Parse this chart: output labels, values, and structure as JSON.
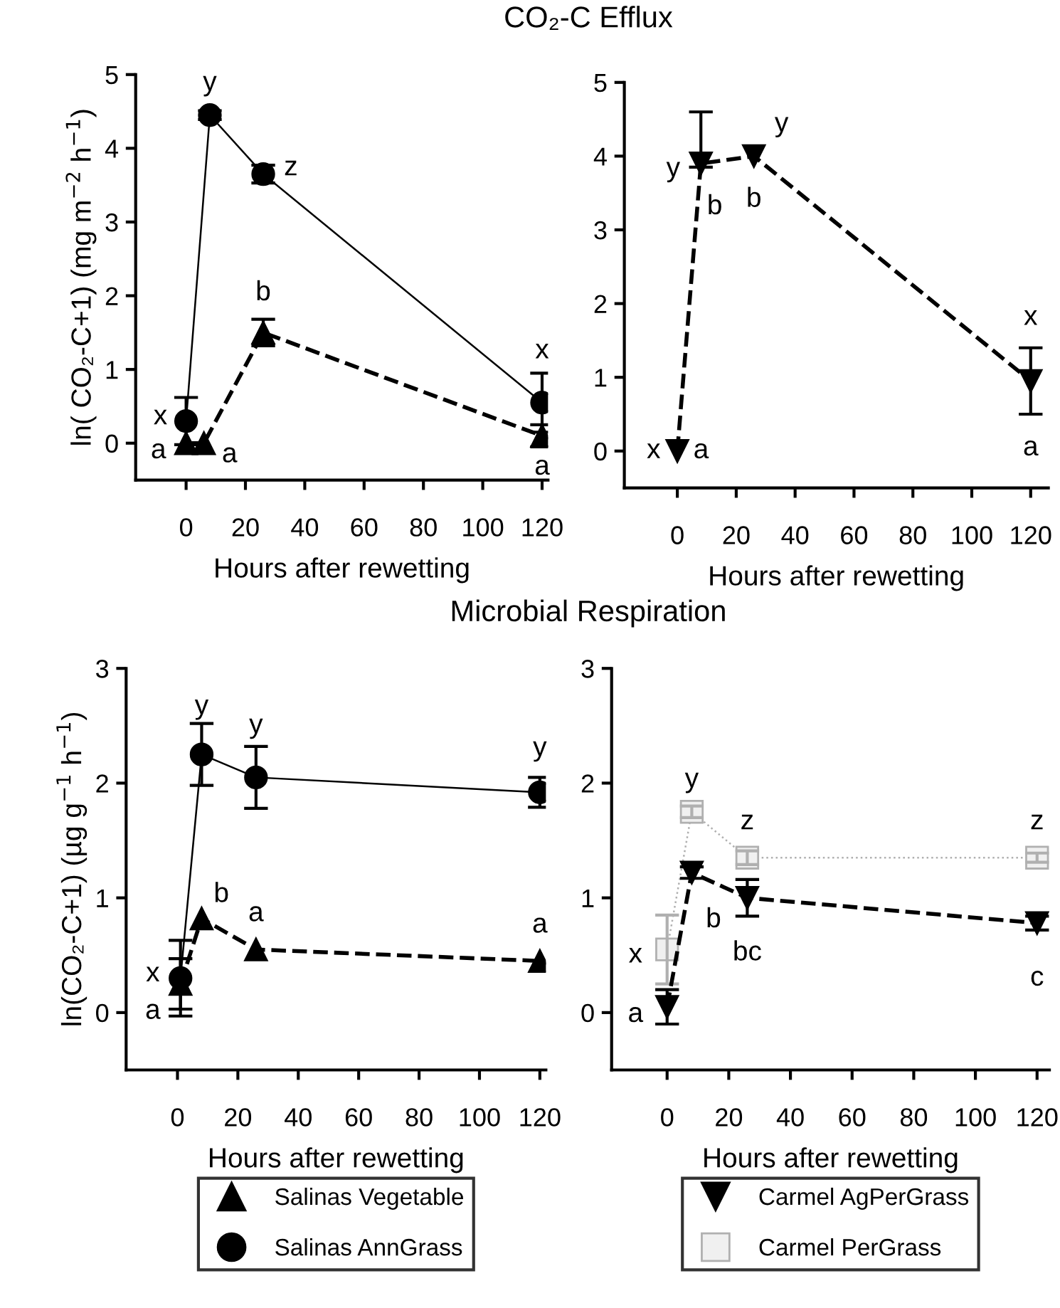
{
  "chart_data": [
    {
      "type": "line",
      "title": "CO₂-C Efflux",
      "xlabel": "Hours after rewetting",
      "ylabel": "ln( CO₂-C+1) (mg m$^{−2}$ h$^{−1}$)",
      "xlim": [
        -17,
        122
      ],
      "xticks": [
        0,
        20,
        40,
        60,
        80,
        100,
        120
      ],
      "ylim": [
        -0.5,
        5
      ],
      "yticks": [
        0,
        1,
        2,
        3,
        4,
        5
      ],
      "grid": false,
      "legend": false,
      "series": [
        {
          "color": "#000000",
          "x": [
            0,
            8,
            26,
            120
          ],
          "values": [
            0.3,
            4.45,
            3.65,
            0.55
          ],
          "errors": [
            0.32,
            0.06,
            0.12,
            0.4
          ],
          "marker": "circle",
          "line_style": "solid"
        },
        {
          "color": "#000000",
          "x": [
            0,
            6,
            26,
            120
          ],
          "values": [
            0,
            0,
            1.5,
            0.1
          ],
          "errors": [
            null,
            null,
            0.18,
            0.15
          ],
          "marker": "triangle",
          "line_style": "dashed"
        }
      ],
      "annotations": [
        {
          "text": "y",
          "x": 8,
          "y": 4.45
        },
        {
          "text": "z",
          "x": 26,
          "y": 3.65
        },
        {
          "text": "b",
          "x": 26,
          "y": 1.5
        },
        {
          "text": "x",
          "x": 0,
          "y": 0.3
        },
        {
          "text": "a",
          "x": 0,
          "y": 0
        },
        {
          "text": "a",
          "x": 6,
          "y": 0
        },
        {
          "text": "x",
          "x": 120,
          "y": 0.55
        },
        {
          "text": "a",
          "x": 120,
          "y": 0.1
        }
      ]
    },
    {
      "type": "line",
      "xlabel": "Hours after rewetting",
      "xlim": [
        -18,
        126
      ],
      "xticks": [
        0,
        20,
        40,
        60,
        80,
        100,
        120
      ],
      "ylim": [
        -0.5,
        5
      ],
      "yticks": [
        0,
        1,
        2,
        3,
        4,
        5
      ],
      "grid": false,
      "legend": false,
      "series": [
        {
          "color": "#000000",
          "x": [
            0,
            8,
            26,
            120
          ],
          "values": [
            0,
            3.9,
            4.0,
            0.95
          ],
          "errors": [
            null,
            [
              3.85,
              4.6
            ],
            null,
            0.45
          ],
          "marker": "triangle_down",
          "line_style": "dashed"
        }
      ],
      "annotations": [
        {
          "text": "y",
          "x": 8,
          "y": 3.9
        },
        {
          "text": "y",
          "x": 26,
          "y": 4.0
        },
        {
          "text": "b",
          "x": 8,
          "y": 3.9
        },
        {
          "text": "b",
          "x": 26,
          "y": 4.0
        },
        {
          "text": "x",
          "x": 0,
          "y": 0
        },
        {
          "text": "a",
          "x": 0,
          "y": 0
        },
        {
          "text": "x",
          "x": 120,
          "y": 0.95
        },
        {
          "text": "a",
          "x": 120,
          "y": 0.95
        }
      ]
    },
    {
      "type": "line",
      "title": "Microbial Respiration",
      "xlabel": "Hours after rewetting",
      "ylabel": "ln(CO₂-C+1) (µg g$^{−1}$ h$^{−1}$)",
      "xlim": [
        -17,
        122
      ],
      "xticks": [
        0,
        20,
        40,
        60,
        80,
        100,
        120
      ],
      "ylim": [
        -0.5,
        3
      ],
      "yticks": [
        0,
        1,
        2,
        3
      ],
      "grid": false,
      "legend": "bottom",
      "series": [
        {
          "name": "Salinas Vegetable",
          "color": "#000000",
          "x": [
            1,
            8,
            26,
            120
          ],
          "values": [
            0.25,
            0.82,
            0.55,
            0.45
          ],
          "errors": [
            0.22,
            null,
            null,
            null
          ],
          "marker": "triangle",
          "line_style": "dashed"
        },
        {
          "name": "Salinas AnnGrass",
          "color": "#000000",
          "x": [
            1,
            8,
            26,
            120
          ],
          "values": [
            0.3,
            2.25,
            2.05,
            1.92
          ],
          "errors": [
            0.33,
            0.27,
            0.27,
            0.13
          ],
          "marker": "circle",
          "line_style": "solid"
        }
      ],
      "annotations": [
        {
          "text": "y",
          "x": 8,
          "y": 2.25
        },
        {
          "text": "y",
          "x": 26,
          "y": 2.05
        },
        {
          "text": "y",
          "x": 120,
          "y": 1.92
        },
        {
          "text": "b",
          "x": 8,
          "y": 0.82
        },
        {
          "text": "a",
          "x": 26,
          "y": 0.55
        },
        {
          "text": "a",
          "x": 120,
          "y": 0.45
        },
        {
          "text": "x",
          "x": 1,
          "y": 0.3
        },
        {
          "text": "a",
          "x": 1,
          "y": 0.25
        }
      ]
    },
    {
      "type": "line",
      "xlabel": "Hours after rewetting",
      "xlim": [
        -18,
        124
      ],
      "xticks": [
        0,
        20,
        40,
        60,
        80,
        100,
        120
      ],
      "ylim": [
        -0.5,
        3
      ],
      "yticks": [
        0,
        1,
        2,
        3
      ],
      "grid": false,
      "legend": "bottom",
      "series": [
        {
          "name": "Carmel AgPerGrass",
          "color": "#000000",
          "x": [
            0,
            8,
            26,
            120
          ],
          "values": [
            0.05,
            1.22,
            1.0,
            0.78
          ],
          "errors": [
            0.15,
            0.05,
            0.16,
            0.06
          ],
          "marker": "triangle_down",
          "line_style": "dashed"
        },
        {
          "name": "Carmel PerGrass",
          "color": "#b0b0b0",
          "x": [
            0,
            8,
            26,
            120
          ],
          "values": [
            0.55,
            1.75,
            1.35,
            1.35
          ],
          "errors": [
            0.3,
            0.05,
            0.06,
            0.04
          ],
          "marker": "square",
          "line_style": "dotted"
        }
      ],
      "annotations": [
        {
          "text": "y",
          "x": 8,
          "y": 1.75
        },
        {
          "text": "z",
          "x": 26,
          "y": 1.35
        },
        {
          "text": "z",
          "x": 120,
          "y": 1.35
        },
        {
          "text": "x",
          "x": 0,
          "y": 0.55
        },
        {
          "text": "a",
          "x": 0,
          "y": 0.05
        },
        {
          "text": "b",
          "x": 8,
          "y": 1.22
        },
        {
          "text": "bc",
          "x": 26,
          "y": 1.0
        },
        {
          "text": "c",
          "x": 120,
          "y": 0.78
        }
      ]
    }
  ]
}
